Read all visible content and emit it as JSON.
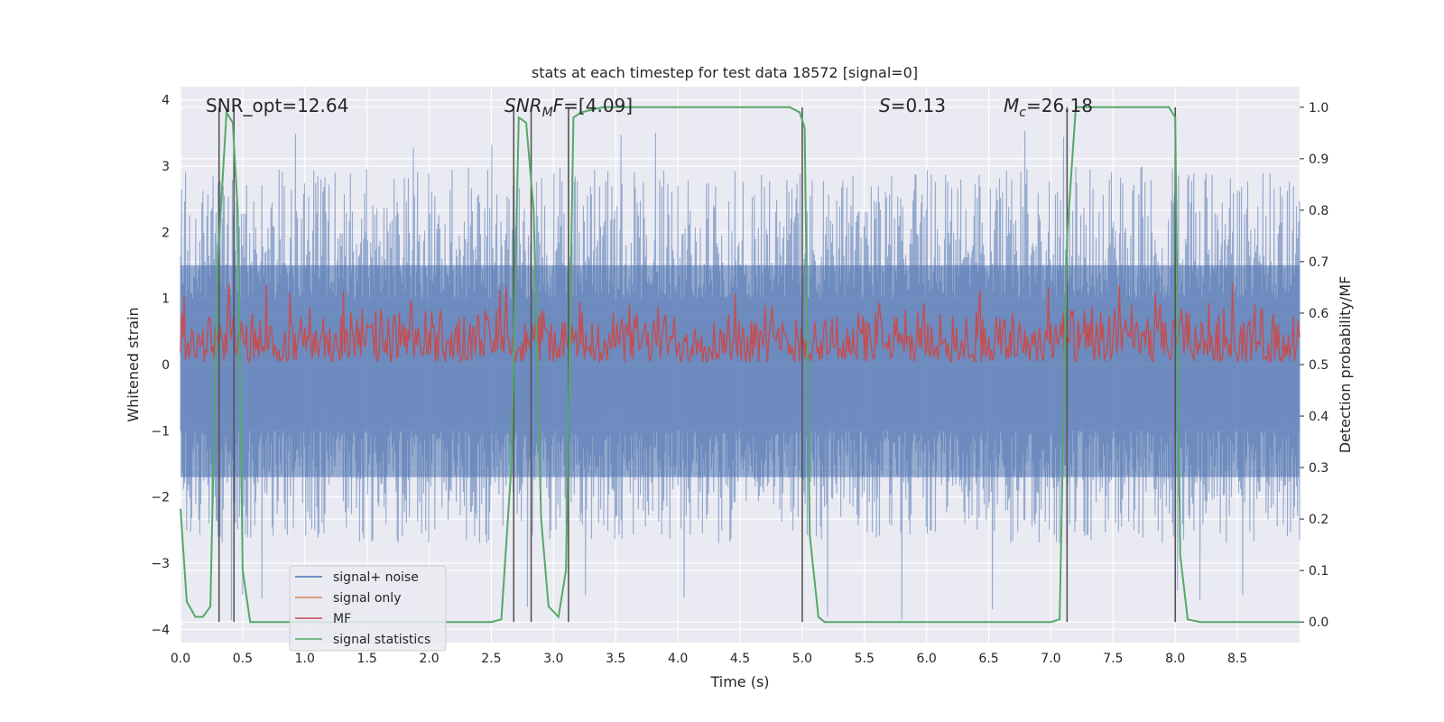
{
  "chart_data": {
    "type": "line",
    "title": "stats at each timestep for test data 18572 [signal=0]",
    "xlabel": "Time (s)",
    "ylabel_left": "Whitened strain",
    "ylabel_right": "Detection probability/MF",
    "xlim": [
      0.0,
      9.0
    ],
    "ylim_left": [
      -4.2,
      4.2
    ],
    "ylim_right": [
      -0.04,
      1.04
    ],
    "x_ticks": [
      "0.0",
      "0.5",
      "1.0",
      "1.5",
      "2.0",
      "2.5",
      "3.0",
      "3.5",
      "4.0",
      "4.5",
      "5.0",
      "5.5",
      "6.0",
      "6.5",
      "7.0",
      "7.5",
      "8.0",
      "8.5"
    ],
    "y_left_ticks": [
      "−4",
      "−3",
      "−2",
      "−1",
      "0",
      "1",
      "2",
      "3",
      "4"
    ],
    "y_right_ticks": [
      "0.0",
      "0.1",
      "0.2",
      "0.3",
      "0.4",
      "0.5",
      "0.6",
      "0.7",
      "0.8",
      "0.9",
      "1.0"
    ],
    "grid": true,
    "legend_position": "lower-left",
    "annotations": {
      "snr_opt": "SNR_opt=12.64",
      "snr_mf_main": "SNR",
      "snr_mf_sub": "M",
      "snr_mf_tail": "F",
      "snr_mf_value": "=[4.09]",
      "s_label": "S",
      "s_value": "=0.13",
      "mc_label": "M",
      "mc_sub": "c",
      "mc_value": "=26.18"
    },
    "series": [
      {
        "name": "signal+ noise",
        "color": "#4c72b0",
        "axis": "left",
        "noise": {
          "envelope_upper": 3.0,
          "envelope_lower": -2.7,
          "dense_band": [
            -1.7,
            1.5
          ],
          "peak": 3.6,
          "trough": -4.0
        }
      },
      {
        "name": "signal only",
        "color": "#dd8452",
        "axis": "left",
        "values": []
      },
      {
        "name": "MF",
        "color": "#c44e52",
        "axis": "right",
        "noise": {
          "center": 0.54,
          "low": 0.505,
          "high": 0.63
        }
      },
      {
        "name": "signal statistics",
        "color": "#55a868",
        "axis": "right",
        "x": [
          0.0,
          0.05,
          0.12,
          0.18,
          0.24,
          0.3,
          0.37,
          0.42,
          0.46,
          0.5,
          0.56,
          0.7,
          1.0,
          2.0,
          2.5,
          2.58,
          2.66,
          2.72,
          2.78,
          2.84,
          2.9,
          2.96,
          3.04,
          3.1,
          3.16,
          3.22,
          3.4,
          4.0,
          4.5,
          4.9,
          4.98,
          5.02,
          5.06,
          5.13,
          5.18,
          5.3,
          6.0,
          7.0,
          7.07,
          7.13,
          7.2,
          7.5,
          7.95,
          8.0,
          8.04,
          8.1,
          8.2,
          8.5,
          9.0
        ],
        "y": [
          0.22,
          0.04,
          0.01,
          0.01,
          0.03,
          0.7,
          0.99,
          0.97,
          0.8,
          0.1,
          0.0,
          0.0,
          0.0,
          0.0,
          0.0,
          0.005,
          0.3,
          0.98,
          0.97,
          0.8,
          0.2,
          0.03,
          0.01,
          0.1,
          0.98,
          0.99,
          1.0,
          1.0,
          1.0,
          1.0,
          0.99,
          0.96,
          0.17,
          0.01,
          0.0,
          0.0,
          0.0,
          0.0,
          0.005,
          0.75,
          1.0,
          1.0,
          1.0,
          0.98,
          0.13,
          0.005,
          0.0,
          0.0,
          0.0
        ]
      }
    ],
    "vertical_markers": [
      0.31,
      0.43,
      2.68,
      2.82,
      3.12,
      5.0,
      7.13,
      8.0
    ],
    "marker_color": "#555555"
  }
}
